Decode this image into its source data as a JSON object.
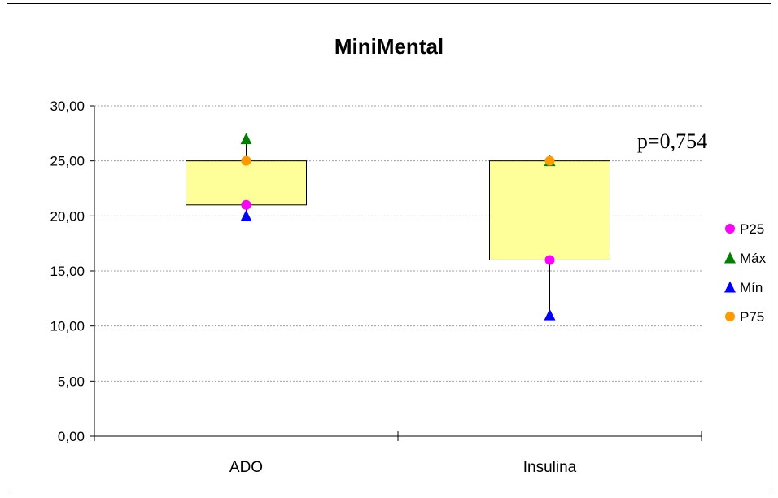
{
  "chart_data": {
    "type": "boxplot",
    "title": "MiniMental",
    "annotation": "p=0,754",
    "categories": [
      "ADO",
      "Insulina"
    ],
    "ylim": [
      0,
      30
    ],
    "y_ticks": [
      "0,00",
      "5,00",
      "10,00",
      "15,00",
      "20,00",
      "25,00",
      "30,00"
    ],
    "y_tick_values": [
      0,
      5,
      10,
      15,
      20,
      25,
      30
    ],
    "grid": true,
    "legend_position": "right",
    "box_color": "#FFFF99",
    "series": [
      {
        "name": "P25",
        "values": [
          21,
          16
        ],
        "color": "#FF00FF",
        "marker": "circle"
      },
      {
        "name": "Máx",
        "values": [
          27,
          25
        ],
        "color": "#008000",
        "marker": "triangle"
      },
      {
        "name": "Mín",
        "values": [
          20,
          11
        ],
        "color": "#0000FF",
        "marker": "triangle"
      },
      {
        "name": "P75",
        "values": [
          25,
          25
        ],
        "color": "#FF9900",
        "marker": "circle"
      }
    ]
  }
}
